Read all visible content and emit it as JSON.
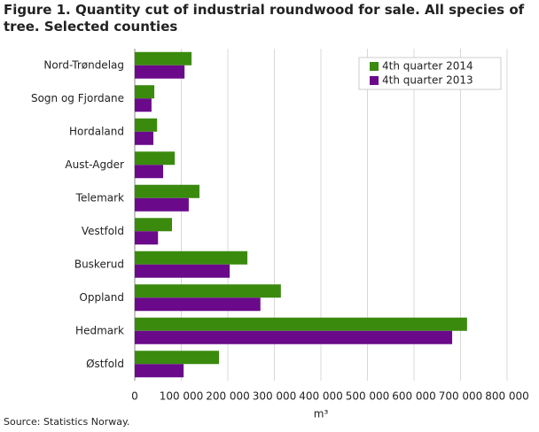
{
  "chart_data": {
    "type": "bar",
    "orientation": "horizontal",
    "title": "Figure 1. Quantity cut of industrial roundwood for sale. All species of tree. Selected counties",
    "source": "Source: Statistics Norway.",
    "x_label": "m³",
    "categories": [
      "Nord-Trøndelag",
      "Sogn og Fjordane",
      "Hordaland",
      "Aust-Agder",
      "Telemark",
      "Vestfold",
      "Buskerud",
      "Oppland",
      "Hedmark",
      "Østfold"
    ],
    "series": [
      {
        "name": "4th quarter 2014",
        "color": "#3a8a0e",
        "values": [
          122000,
          42000,
          48000,
          86000,
          139000,
          80000,
          242000,
          314000,
          714000,
          181000
        ]
      },
      {
        "name": "4th quarter 2013",
        "color": "#6a0a8a",
        "values": [
          107000,
          36000,
          40000,
          61000,
          116000,
          50000,
          204000,
          270000,
          682000,
          105000
        ]
      }
    ],
    "xlim": [
      0,
      800000
    ],
    "xticks": [
      0,
      {
        "value": 100000,
        "label": "100 000"
      },
      {
        "value": 200000,
        "label": "200 000"
      },
      {
        "value": 300000,
        "label": "300 000"
      },
      {
        "value": 400000,
        "label": "400 000"
      },
      {
        "value": 500000,
        "label": "500 000"
      },
      {
        "value": 600000,
        "label": "600 000"
      },
      {
        "value": 700000,
        "label": "700 000"
      },
      {
        "value": 800000,
        "label": "800 000"
      }
    ],
    "grid": true
  }
}
